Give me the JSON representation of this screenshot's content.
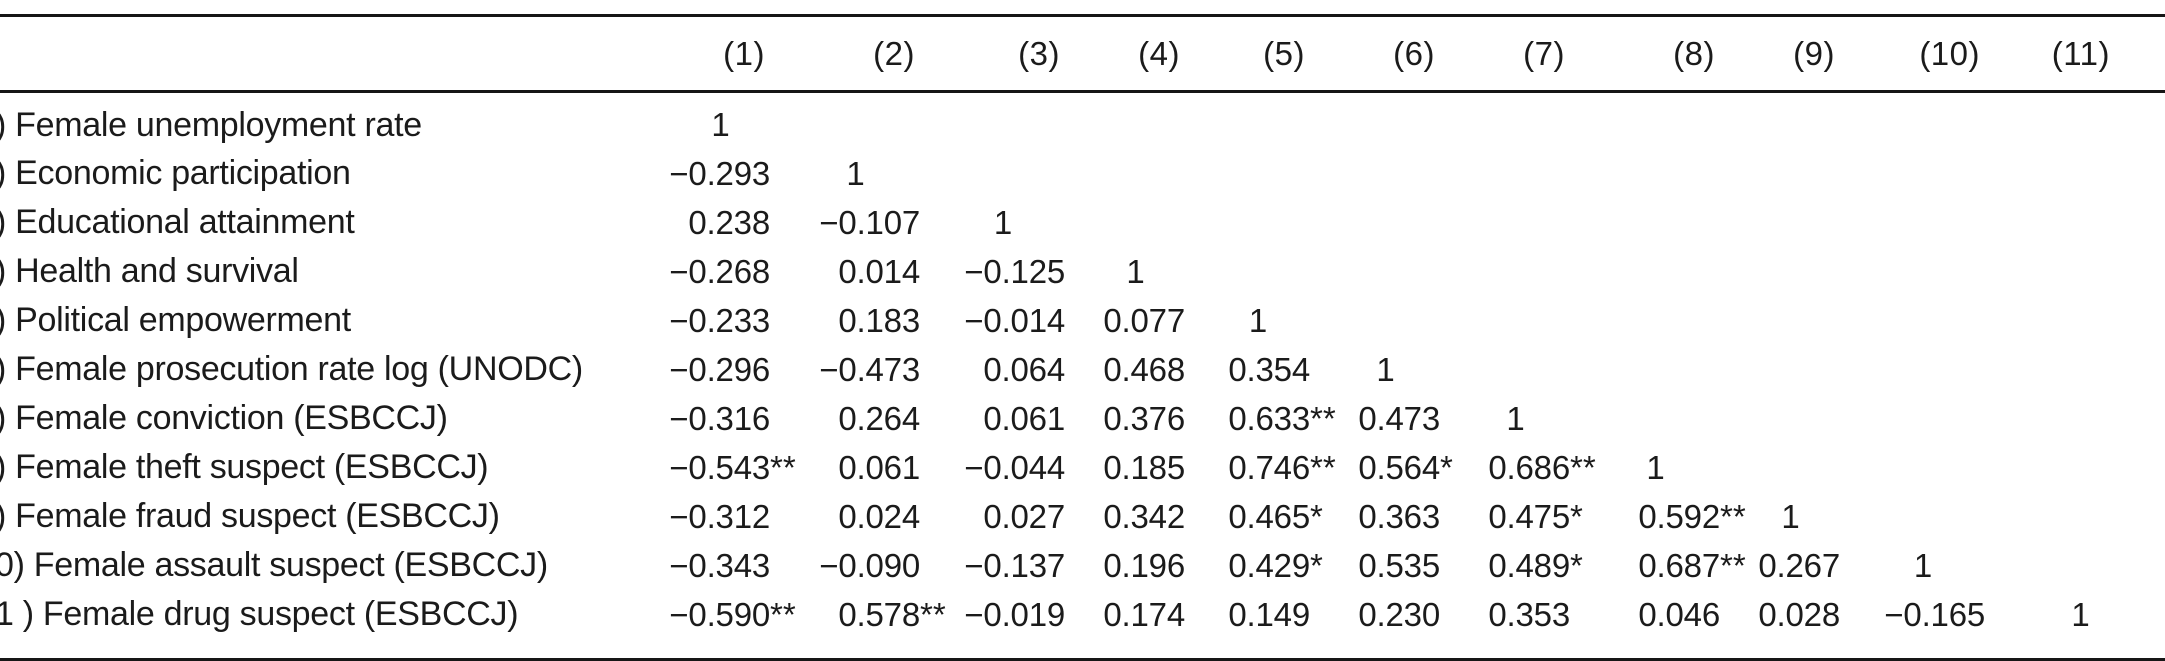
{
  "table": {
    "header": {
      "col_labels": [
        "(1)",
        "(2)",
        "(3)",
        "(4)",
        "(5)",
        "(6)",
        "(7)",
        "(8)",
        "(9)",
        "(10)",
        "(11)"
      ]
    },
    "rows": [
      {
        "label": ") Female unemployment rate",
        "values": [
          "1",
          "",
          "",
          "",
          "",
          "",
          "",
          "",
          "",
          "",
          ""
        ]
      },
      {
        "label": ") Economic participation",
        "values": [
          "−0.293",
          "1",
          "",
          "",
          "",
          "",
          "",
          "",
          "",
          "",
          ""
        ]
      },
      {
        "label": ") Educational attainment",
        "values": [
          "0.238",
          "−0.107",
          "1",
          "",
          "",
          "",
          "",
          "",
          "",
          "",
          ""
        ]
      },
      {
        "label": ") Health and survival",
        "values": [
          "−0.268",
          "0.014",
          "−0.125",
          "1",
          "",
          "",
          "",
          "",
          "",
          "",
          ""
        ]
      },
      {
        "label": ") Political empowerment",
        "values": [
          "−0.233",
          "0.183",
          "−0.014",
          "0.077",
          "1",
          "",
          "",
          "",
          "",
          "",
          ""
        ]
      },
      {
        "label": ") Female prosecution rate log (UNODC)",
        "values": [
          "−0.296",
          "−0.473",
          "0.064",
          "0.468",
          "0.354",
          "1",
          "",
          "",
          "",
          "",
          ""
        ]
      },
      {
        "label": ") Female conviction (ESBCCJ)",
        "values": [
          "−0.316",
          "0.264",
          "0.061",
          "0.376",
          "0.633**",
          "0.473",
          "1",
          "",
          "",
          "",
          ""
        ]
      },
      {
        "label": ") Female theft suspect (ESBCCJ)",
        "values": [
          "−0.543**",
          "0.061",
          "−0.044",
          "0.185",
          "0.746**",
          "0.564*",
          "0.686**",
          "1",
          "",
          "",
          ""
        ]
      },
      {
        "label": ") Female fraud suspect (ESBCCJ)",
        "values": [
          "−0.312",
          "0.024",
          "0.027",
          "0.342",
          "0.465*",
          "0.363",
          "0.475*",
          "0.592**",
          "1",
          "",
          ""
        ]
      },
      {
        "label": "0) Female assault suspect (ESBCCJ)",
        "values": [
          "−0.343",
          "−0.090",
          "−0.137",
          "0.196",
          "0.429*",
          "0.535",
          "0.489*",
          "0.687**",
          "0.267",
          "1",
          ""
        ]
      },
      {
        "label": "1 ) Female drug suspect (ESBCCJ)",
        "values": [
          "−0.590**",
          "0.578**",
          "−0.019",
          "0.174",
          "0.149",
          "0.230",
          "0.353",
          "0.046",
          "0.028",
          "−0.165",
          "1"
        ]
      }
    ]
  },
  "colors": {
    "text": "#1b1b1b",
    "rule": "#161616",
    "background": "#ffffff"
  }
}
